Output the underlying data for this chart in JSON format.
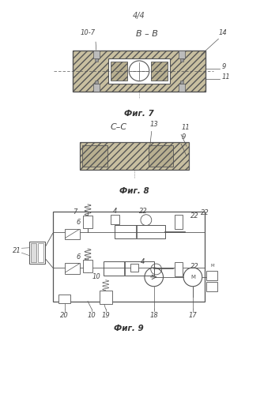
{
  "page_label": "4/4",
  "fig7_label": "Фиг. 7",
  "fig8_label": "Фиг. 8",
  "fig9_label": "Фиг. 9",
  "fig7_title": "В – В",
  "fig8_title": "С–С",
  "bg_color": "#ffffff",
  "lc": "#555555",
  "hatch_fc": "#c8bfa0",
  "inner_hatch_fc": "#b8af90"
}
